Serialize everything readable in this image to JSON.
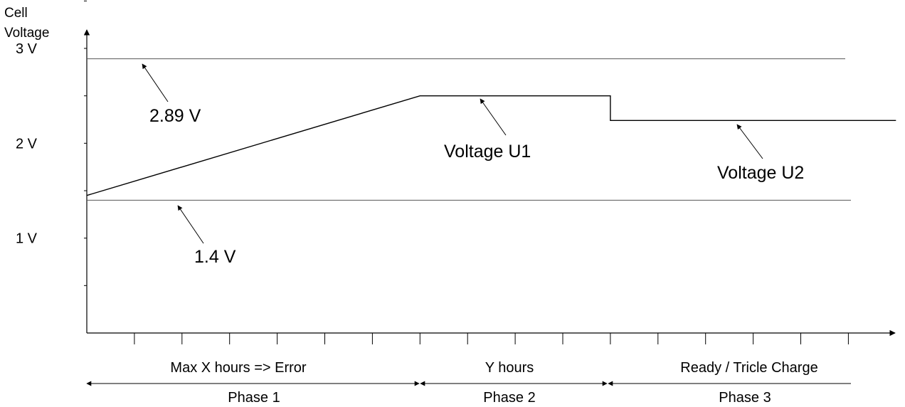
{
  "y_axis": {
    "label_line1": "Cell",
    "label_line2": "Voltage",
    "ticks": [
      {
        "value": 1,
        "label": "1 V"
      },
      {
        "value": 2,
        "label": "2 V"
      },
      {
        "value": 3,
        "label": "3 V"
      }
    ],
    "minor_ticks": [
      0.5,
      1,
      1.5,
      2,
      2.5,
      3,
      3.5
    ]
  },
  "reference_lines": [
    {
      "value": 2.89,
      "label": "2.89 V"
    },
    {
      "value": 1.4,
      "label": "1.4 V"
    }
  ],
  "voltage_curve": {
    "points": [
      [
        0,
        1.45
      ],
      [
        7,
        2.5
      ],
      [
        11,
        2.5
      ],
      [
        11,
        2.24
      ],
      [
        17,
        2.24
      ]
    ],
    "annotations": [
      {
        "label": "Voltage U1"
      },
      {
        "label": "Voltage U2"
      }
    ]
  },
  "phases": [
    {
      "name": "Phase 1",
      "description": "Max X hours => Error"
    },
    {
      "name": "Phase 2",
      "description": "Y hours"
    },
    {
      "name": "Phase 3",
      "description": "Ready / Tricle Charge"
    }
  ]
}
